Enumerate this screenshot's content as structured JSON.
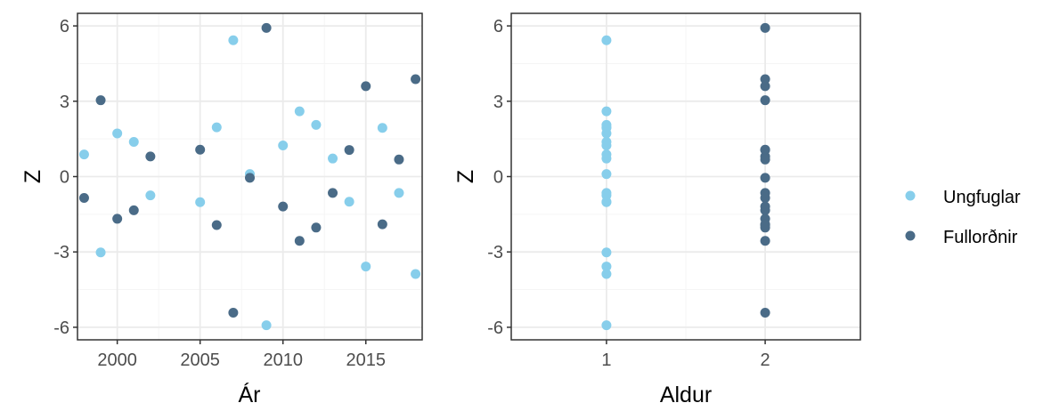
{
  "colors": {
    "juvenile": "#87ceeb",
    "adult": "#4a6b87",
    "grid_major": "#ebebeb",
    "grid_minor": "#f5f5f5",
    "panel_border": "#333333"
  },
  "legend": {
    "position": "right",
    "items": [
      {
        "label": "Ungfuglar",
        "color": "#87ceeb"
      },
      {
        "label": "Fullorðnir",
        "color": "#4a6b87"
      }
    ]
  },
  "chart_data": [
    {
      "type": "scatter",
      "xlabel": "Ár",
      "ylabel": "Z",
      "xlim": [
        1997.6,
        2018.4
      ],
      "ylim": [
        -6.5,
        6.5
      ],
      "xticks": [
        2000,
        2005,
        2010,
        2015
      ],
      "yticks": [
        6,
        3,
        0,
        -3,
        -6
      ],
      "xtick_labels": [
        "2000",
        "2005",
        "2010",
        "2015"
      ],
      "ytick_labels": [
        "6",
        "3",
        "0",
        "-3",
        "-6"
      ],
      "grid": true,
      "series": [
        {
          "name": "Ungfuglar",
          "color": "#87ceeb",
          "x": [
            1998,
            1999,
            2000,
            2001,
            2002,
            2005,
            2006,
            2007,
            2008,
            2009,
            2010,
            2011,
            2012,
            2013,
            2014,
            2015,
            2016,
            2017,
            2018
          ],
          "y": [
            0.88,
            -3.02,
            1.72,
            1.38,
            -0.75,
            -1.02,
            1.96,
            5.43,
            0.1,
            -5.92,
            1.24,
            2.6,
            2.06,
            0.72,
            -1.0,
            -3.58,
            1.94,
            -0.65,
            -3.88
          ]
        },
        {
          "name": "Fullorðnir",
          "color": "#4a6b87",
          "x": [
            1998,
            1999,
            2000,
            2001,
            2002,
            2005,
            2006,
            2007,
            2008,
            2009,
            2010,
            2011,
            2012,
            2013,
            2014,
            2015,
            2016,
            2017,
            2018
          ],
          "y": [
            -0.85,
            3.04,
            -1.68,
            -1.34,
            0.8,
            1.07,
            -1.93,
            -5.42,
            -0.05,
            5.92,
            -1.19,
            -2.56,
            -2.03,
            -0.65,
            1.06,
            3.6,
            -1.9,
            0.68,
            3.88
          ]
        }
      ]
    },
    {
      "type": "scatter",
      "xlabel": "Aldur",
      "ylabel": "Z",
      "xlim": [
        0.4,
        2.6
      ],
      "ylim": [
        -6.5,
        6.5
      ],
      "xticks": [
        1,
        2
      ],
      "yticks": [
        6,
        3,
        0,
        -3,
        -6
      ],
      "xtick_labels": [
        "1",
        "2"
      ],
      "ytick_labels": [
        "6",
        "3",
        "0",
        "-3",
        "-6"
      ],
      "grid": true,
      "series": [
        {
          "name": "Ungfuglar",
          "color": "#87ceeb",
          "x": [
            1,
            1,
            1,
            1,
            1,
            1,
            1,
            1,
            1,
            1,
            1,
            1,
            1,
            1,
            1,
            1,
            1,
            1,
            1
          ],
          "y": [
            0.88,
            -3.02,
            1.72,
            1.38,
            -0.75,
            -1.02,
            1.96,
            5.43,
            0.1,
            -5.92,
            1.24,
            2.6,
            2.06,
            0.72,
            -1.0,
            -3.58,
            1.94,
            -0.65,
            -3.88
          ]
        },
        {
          "name": "Fullorðnir",
          "color": "#4a6b87",
          "x": [
            2,
            2,
            2,
            2,
            2,
            2,
            2,
            2,
            2,
            2,
            2,
            2,
            2,
            2,
            2,
            2,
            2,
            2,
            2
          ],
          "y": [
            -0.85,
            3.04,
            -1.68,
            -1.34,
            0.8,
            1.07,
            -1.93,
            -5.42,
            -0.05,
            5.92,
            -1.19,
            -2.56,
            -2.03,
            -0.65,
            1.06,
            3.6,
            -1.9,
            0.68,
            3.88
          ]
        }
      ]
    }
  ]
}
